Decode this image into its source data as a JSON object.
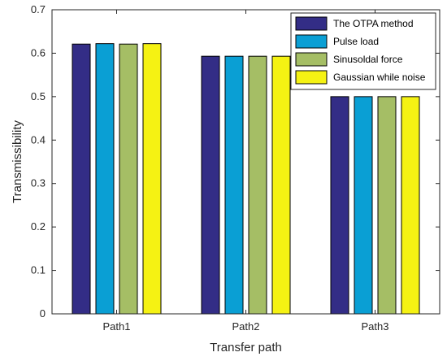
{
  "chart_data": {
    "type": "bar",
    "categories": [
      "Path1",
      "Path2",
      "Path3"
    ],
    "series": [
      {
        "name": "The OTPA method",
        "color": "#332d86",
        "values": [
          0.621,
          0.593,
          0.5
        ]
      },
      {
        "name": "Pulse load",
        "color": "#0a9fd4",
        "values": [
          0.622,
          0.593,
          0.5
        ]
      },
      {
        "name": "Sinusoldal force",
        "color": "#a5be65",
        "values": [
          0.621,
          0.593,
          0.5
        ]
      },
      {
        "name": "Gaussian while noise",
        "color": "#f5f213",
        "values": [
          0.622,
          0.593,
          0.5
        ]
      }
    ],
    "xlabel": "Transfer path",
    "ylabel": "Transmissibility",
    "ylim": [
      0,
      0.7
    ],
    "yticks": [
      "0",
      "0.1",
      "0.2",
      "0.3",
      "0.4",
      "0.5",
      "0.6",
      "0.7"
    ],
    "grid": false,
    "legend_position": "top-right"
  }
}
